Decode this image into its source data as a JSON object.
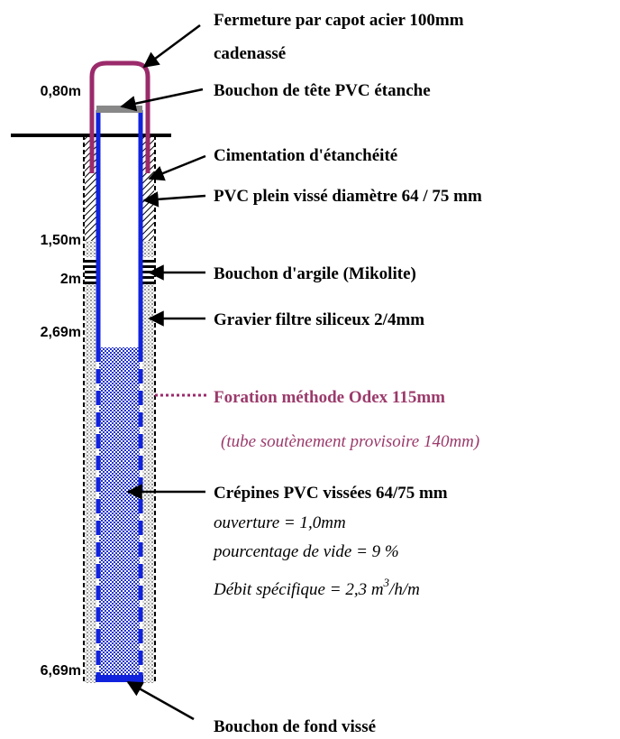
{
  "depths": [
    "0,80m",
    "1,50m",
    "2m",
    "2,69m",
    "6,69m"
  ],
  "labels": {
    "cap": [
      "Fermeture par capot acier 100mm",
      "cadenassé"
    ],
    "head_plug": "Bouchon de tête PVC étanche",
    "cement": "Cimentation d'étanchéité",
    "solid_pvc": "PVC plein vissé diamètre 64 / 75 mm",
    "clay_plug": "Bouchon d'argile (Mikolite)",
    "gravel": "Gravier filtre siliceux 2/4mm",
    "drilling": "Foration méthode Odex 115mm",
    "casing": "(tube soutènement provisoire 140mm)",
    "screens": {
      "title": "Crépines PVC vissées 64/75 mm",
      "opening": "ouverture  = 1,0mm",
      "void": "pourcentage de vide = 9 %",
      "flow": "Débit spécifique = 2,3 m",
      "flow_exp": "3",
      "flow_unit": "/h/m"
    },
    "bottom_plug": "Bouchon de fond vissé"
  }
}
